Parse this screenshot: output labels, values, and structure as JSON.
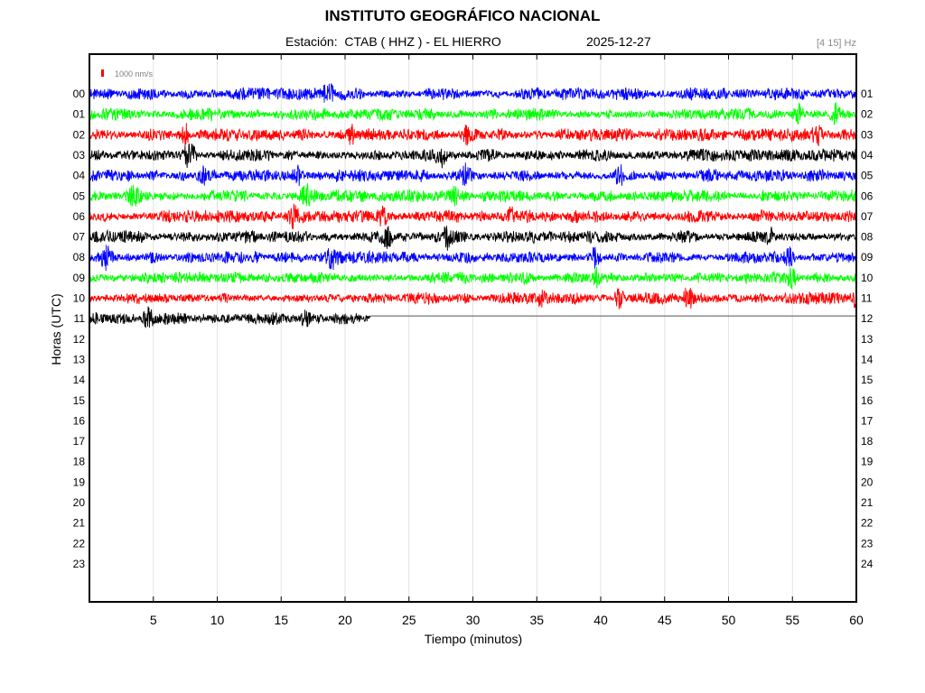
{
  "header": {
    "title": "INSTITUTO GEOGRÁFICO NACIONAL",
    "station_line": "Estación:  CTAB ( HHZ ) - EL HIERRO",
    "date": "2025-12-27",
    "frequency_band": "[4 15] Hz"
  },
  "chart_data": {
    "type": "line",
    "title": "INSTITUTO GEOGRÁFICO NACIONAL",
    "xlabel": "Tiempo (minutos)",
    "ylabel": "Horas (UTC)",
    "xlim": [
      0,
      60
    ],
    "x_ticks": [
      5,
      10,
      15,
      20,
      25,
      30,
      35,
      40,
      45,
      50,
      55,
      60
    ],
    "left_hour_labels": [
      "00",
      "01",
      "02",
      "03",
      "04",
      "05",
      "06",
      "07",
      "08",
      "09",
      "10",
      "11",
      "12",
      "13",
      "14",
      "15",
      "16",
      "17",
      "18",
      "19",
      "20",
      "21",
      "22",
      "23"
    ],
    "right_hour_labels": [
      "01",
      "02",
      "03",
      "04",
      "05",
      "06",
      "07",
      "08",
      "09",
      "10",
      "11",
      "12",
      "13",
      "14",
      "15",
      "16",
      "17",
      "18",
      "19",
      "20",
      "21",
      "22",
      "23",
      "24"
    ],
    "scale_bar": {
      "label": "1000 nm/s",
      "color": "#ff0000"
    },
    "grid": "vertical",
    "trace_colors": [
      "#0000ff",
      "#00ff00",
      "#ff0000",
      "#000000"
    ],
    "series": [
      {
        "hour": "00",
        "color": "#0000ff",
        "end_minute": 60,
        "events": [
          18.7
        ]
      },
      {
        "hour": "01",
        "color": "#00ff00",
        "end_minute": 60,
        "events": [
          55.5,
          58.3
        ]
      },
      {
        "hour": "02",
        "color": "#ff0000",
        "end_minute": 60,
        "events": [
          7.5,
          20.5,
          29.5,
          57.0
        ]
      },
      {
        "hour": "03",
        "color": "#000000",
        "end_minute": 60,
        "events": [
          7.6,
          8.0,
          27.5
        ]
      },
      {
        "hour": "04",
        "color": "#0000ff",
        "end_minute": 60,
        "events": [
          8.8,
          16.3,
          29.5,
          41.5
        ]
      },
      {
        "hour": "05",
        "color": "#00ff00",
        "end_minute": 60,
        "events": [
          3.5,
          17.0,
          28.5
        ]
      },
      {
        "hour": "06",
        "color": "#ff0000",
        "end_minute": 60,
        "events": [
          16.0,
          23.0,
          33.0
        ]
      },
      {
        "hour": "07",
        "color": "#000000",
        "end_minute": 60,
        "events": [
          23.4,
          28.0,
          53.2
        ]
      },
      {
        "hour": "08",
        "color": "#0000ff",
        "end_minute": 60,
        "events": [
          1.3,
          19.0,
          39.5,
          54.7
        ]
      },
      {
        "hour": "09",
        "color": "#00ff00",
        "end_minute": 60,
        "events": [
          39.7,
          54.9
        ]
      },
      {
        "hour": "10",
        "color": "#ff0000",
        "end_minute": 60,
        "events": [
          35.2,
          41.5,
          46.8,
          59.8
        ]
      },
      {
        "hour": "11",
        "color": "#000000",
        "end_minute": 22,
        "events": [
          4.6,
          17.0
        ]
      }
    ]
  }
}
